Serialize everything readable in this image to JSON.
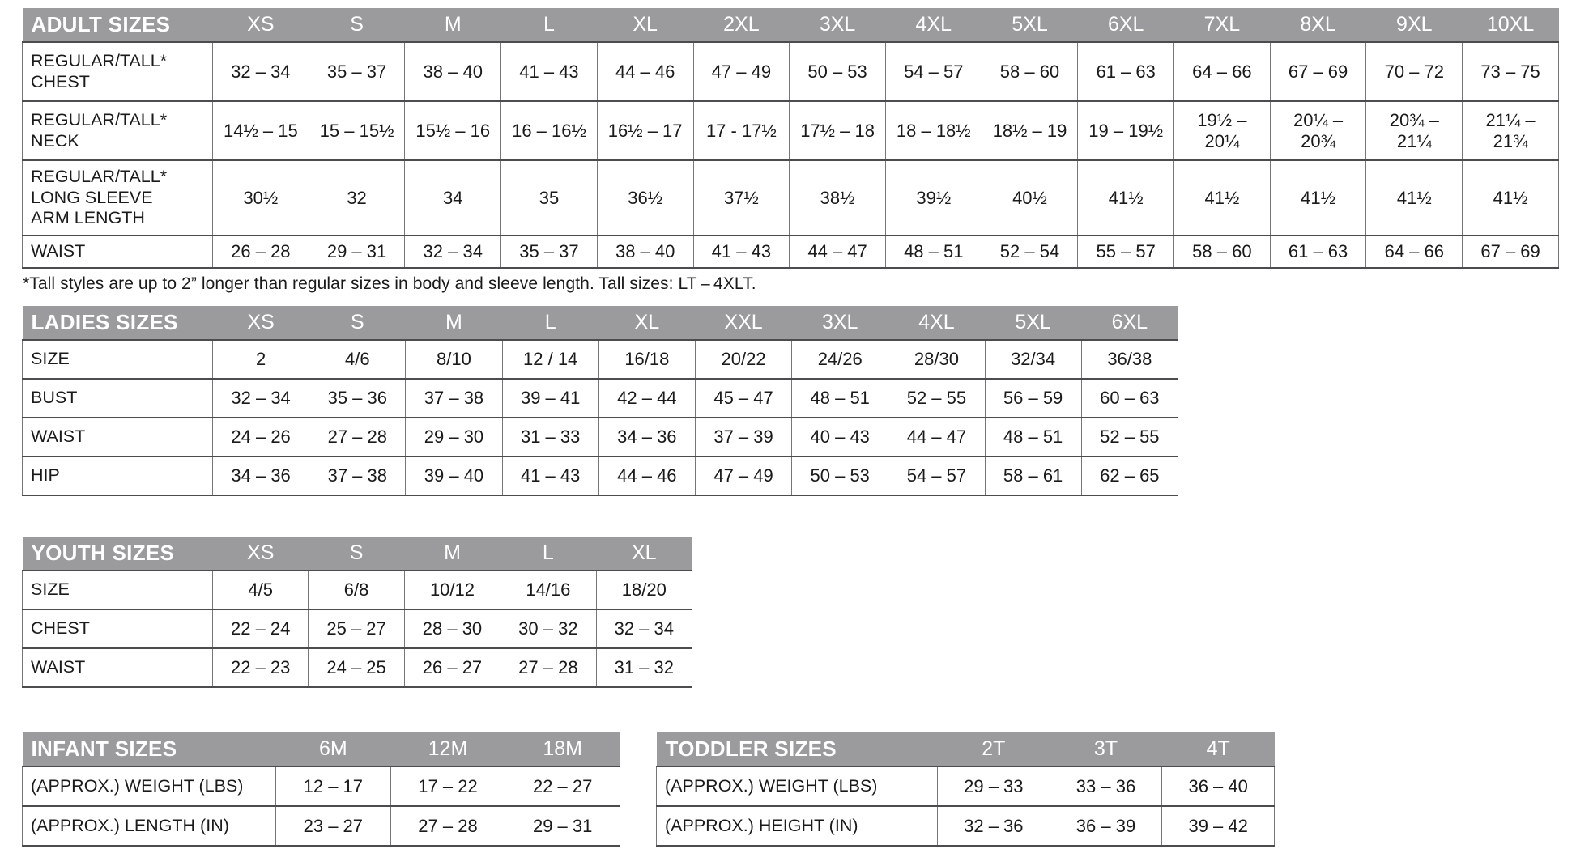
{
  "colors": {
    "header_bg": "#9b9a9d",
    "header_text": "#ffffff",
    "cell_text": "#1a1a1a",
    "grid_line_dark": "#4c4c4e",
    "grid_line_light": "#77777a"
  },
  "footnote": {
    "text": "*Tall styles are up to 2” longer than regular sizes in body and sleeve length. Tall sizes: LT – 4XLT."
  },
  "tables": {
    "adult": {
      "title": "ADULT SIZES",
      "columns": [
        "XS",
        "S",
        "M",
        "L",
        "XL",
        "2XL",
        "3XL",
        "4XL",
        "5XL",
        "6XL",
        "7XL",
        "8XL",
        "9XL",
        "10XL"
      ],
      "rows": [
        {
          "label": "REGULAR/TALL*\nCHEST",
          "values": [
            "32 – 34",
            "35 – 37",
            "38 – 40",
            "41 – 43",
            "44 – 46",
            "47 – 49",
            "50 – 53",
            "54 – 57",
            "58 – 60",
            "61 – 63",
            "64 – 66",
            "67 – 69",
            "70 – 72",
            "73 – 75"
          ]
        },
        {
          "label": "REGULAR/TALL*\nNECK",
          "values": [
            "14½ – 15",
            "15 – 15½",
            "15½ – 16",
            "16 – 16½",
            "16½ – 17",
            "17 - 17½",
            "17½ – 18",
            "18 – 18½",
            "18½ – 19",
            "19 – 19½",
            "19½ –\n20¼",
            "20¼ –\n20¾",
            "20¾ –\n21¼",
            "21¼ –\n21¾"
          ]
        },
        {
          "label": "REGULAR/TALL*\nLONG SLEEVE\nARM LENGTH",
          "values": [
            "30½",
            "32",
            "34",
            "35",
            "36½",
            "37½",
            "38½",
            "39½",
            "40½",
            "41½",
            "41½",
            "41½",
            "41½",
            "41½"
          ]
        },
        {
          "label": "WAIST",
          "values": [
            "26 – 28",
            "29 – 31",
            "32 – 34",
            "35 – 37",
            "38 – 40",
            "41 – 43",
            "44 – 47",
            "48 – 51",
            "52 – 54",
            "55 – 57",
            "58 – 60",
            "61 – 63",
            "64 – 66",
            "67 – 69"
          ]
        }
      ]
    },
    "ladies": {
      "title": "LADIES SIZES",
      "columns": [
        "XS",
        "S",
        "M",
        "L",
        "XL",
        "XXL",
        "3XL",
        "4XL",
        "5XL",
        "6XL"
      ],
      "rows": [
        {
          "label": "SIZE",
          "values": [
            "2",
            "4/6",
            "8/10",
            "12 / 14",
            "16/18",
            "20/22",
            "24/26",
            "28/30",
            "32/34",
            "36/38"
          ]
        },
        {
          "label": "BUST",
          "values": [
            "32 – 34",
            "35 – 36",
            "37 – 38",
            "39 – 41",
            "42 – 44",
            "45 – 47",
            "48 – 51",
            "52 – 55",
            "56 – 59",
            "60 – 63"
          ]
        },
        {
          "label": "WAIST",
          "values": [
            "24 – 26",
            "27 – 28",
            "29 – 30",
            "31 – 33",
            "34 – 36",
            "37 – 39",
            "40 – 43",
            "44 – 47",
            "48 – 51",
            "52 – 55"
          ]
        },
        {
          "label": "HIP",
          "values": [
            "34 – 36",
            "37 – 38",
            "39 – 40",
            "41 – 43",
            "44 – 46",
            "47 – 49",
            "50 – 53",
            "54 – 57",
            "58 – 61",
            "62 – 65"
          ]
        }
      ]
    },
    "youth": {
      "title": "YOUTH SIZES",
      "columns": [
        "XS",
        "S",
        "M",
        "L",
        "XL"
      ],
      "rows": [
        {
          "label": "SIZE",
          "values": [
            "4/5",
            "6/8",
            "10/12",
            "14/16",
            "18/20"
          ]
        },
        {
          "label": "CHEST",
          "values": [
            "22 – 24",
            "25 – 27",
            "28 – 30",
            "30 – 32",
            "32 – 34"
          ]
        },
        {
          "label": "WAIST",
          "values": [
            "22 – 23",
            "24 – 25",
            "26 – 27",
            "27 – 28",
            "31 – 32"
          ]
        }
      ]
    },
    "infant": {
      "title": "INFANT SIZES",
      "columns": [
        "6M",
        "12M",
        "18M"
      ],
      "rows": [
        {
          "label": "(APPROX.) WEIGHT (LBS)",
          "values": [
            "12 – 17",
            "17 – 22",
            "22 – 27"
          ]
        },
        {
          "label": "(APPROX.) LENGTH (IN)",
          "values": [
            "23 – 27",
            "27 – 28",
            "29 – 31"
          ]
        }
      ]
    },
    "toddler": {
      "title": "TODDLER SIZES",
      "columns": [
        "2T",
        "3T",
        "4T"
      ],
      "rows": [
        {
          "label": "(APPROX.) WEIGHT (LBS)",
          "values": [
            "29 – 33",
            "33 – 36",
            "36 – 40"
          ]
        },
        {
          "label": "(APPROX.) HEIGHT (IN)",
          "values": [
            "32 – 36",
            "36 – 39",
            "39 – 42"
          ]
        }
      ]
    }
  }
}
